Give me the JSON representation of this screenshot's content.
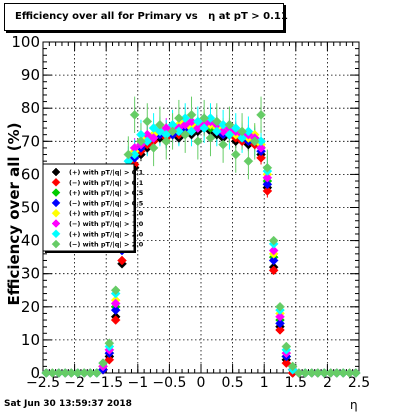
{
  "title": "Efficiency over all for Primary vs   η at pT > 0.11",
  "date": "Sat Jun 30 13:59:37 2018",
  "chart_data": {
    "type": "scatter",
    "title": "Efficiency over all for Primary vs   η at pT > 0.11",
    "xlabel": "η",
    "ylabel": "Efficiency over all (%)",
    "xlim": [
      -2.5,
      2.5
    ],
    "ylim": [
      0,
      100
    ],
    "grid": true,
    "legend_position": "left-middle",
    "x_ticks": [
      "−2.5",
      "−2",
      "−1.5",
      "−1",
      "−0.5",
      "0",
      "0.5",
      "1",
      "1.5",
      "2",
      "2.5"
    ],
    "y_ticks": [
      "0",
      "10",
      "20",
      "30",
      "40",
      "50",
      "60",
      "70",
      "80",
      "90",
      "100"
    ],
    "x": [
      -2.45,
      -2.35,
      -2.25,
      -2.15,
      -2.05,
      -1.95,
      -1.85,
      -1.75,
      -1.65,
      -1.55,
      -1.45,
      -1.35,
      -1.25,
      -1.15,
      -1.05,
      -0.95,
      -0.85,
      -0.75,
      -0.65,
      -0.55,
      -0.45,
      -0.35,
      -0.25,
      -0.15,
      -0.05,
      0.05,
      0.15,
      0.25,
      0.35,
      0.45,
      0.55,
      0.65,
      0.75,
      0.85,
      0.95,
      1.05,
      1.15,
      1.25,
      1.35,
      1.45,
      1.55,
      1.65,
      1.75,
      1.85,
      1.95,
      2.05,
      2.15,
      2.25,
      2.35,
      2.45
    ],
    "series": [
      {
        "name": "(+) with pT/|q| > 0.1",
        "color": "#000000",
        "values": [
          0,
          0,
          0,
          0,
          0,
          0,
          0,
          0,
          0,
          1,
          5,
          17,
          33,
          55,
          62,
          66,
          68,
          70,
          71,
          70,
          72,
          71,
          73,
          72,
          73,
          74,
          73,
          72,
          71,
          72,
          70,
          71,
          69,
          70,
          66,
          56,
          32,
          14,
          4,
          0,
          0,
          0,
          0,
          0,
          0,
          0,
          0,
          0,
          0,
          0
        ]
      },
      {
        "name": "(−) with pT/|q| > 0.1",
        "color": "#ff0000",
        "values": [
          0,
          0,
          0,
          0,
          0,
          0,
          0,
          0,
          0,
          1,
          4,
          16,
          34,
          56,
          63,
          67,
          69,
          70,
          72,
          71,
          73,
          72,
          74,
          73,
          74,
          75,
          74,
          73,
          72,
          73,
          71,
          70,
          70,
          69,
          65,
          55,
          31,
          13,
          3,
          0,
          0,
          0,
          0,
          0,
          0,
          0,
          0,
          0,
          0,
          0
        ]
      },
      {
        "name": "(+) with pT/|q| > 0.5",
        "color": "#00cc00",
        "values": [
          0,
          0,
          0,
          0,
          0,
          0,
          0,
          0,
          0,
          2,
          6,
          20,
          38,
          60,
          66,
          69,
          70,
          72,
          73,
          72,
          73,
          74,
          75,
          74,
          75,
          75,
          74,
          74,
          73,
          73,
          72,
          72,
          71,
          71,
          68,
          58,
          35,
          16,
          5,
          1,
          0,
          0,
          0,
          0,
          0,
          0,
          0,
          0,
          0,
          0
        ]
      },
      {
        "name": "(−) with pT/|q| > 0.5",
        "color": "#0000ff",
        "values": [
          0,
          0,
          0,
          0,
          0,
          0,
          0,
          0,
          0,
          1,
          6,
          19,
          37,
          59,
          65,
          68,
          70,
          71,
          72,
          73,
          72,
          73,
          74,
          75,
          74,
          76,
          75,
          73,
          72,
          72,
          73,
          71,
          70,
          70,
          67,
          57,
          34,
          15,
          5,
          1,
          0,
          0,
          0,
          0,
          0,
          0,
          0,
          0,
          0,
          0
        ]
      },
      {
        "name": "(+) with pT/|q| > 1.0",
        "color": "#ffff00",
        "values": [
          0,
          0,
          0,
          0,
          0,
          0,
          0,
          0,
          0,
          2,
          7,
          22,
          40,
          62,
          67,
          70,
          71,
          72,
          74,
          73,
          74,
          75,
          76,
          74,
          75,
          76,
          75,
          74,
          74,
          73,
          72,
          73,
          71,
          72,
          69,
          60,
          36,
          18,
          6,
          1,
          0,
          0,
          0,
          0,
          0,
          0,
          0,
          0,
          0,
          0
        ]
      },
      {
        "name": "(−) with pT/|q| > 1.0",
        "color": "#ff00ff",
        "values": [
          0,
          0,
          0,
          0,
          0,
          0,
          0,
          0,
          0,
          2,
          7,
          21,
          39,
          61,
          68,
          69,
          72,
          71,
          73,
          74,
          73,
          74,
          75,
          76,
          74,
          75,
          76,
          75,
          73,
          74,
          73,
          72,
          72,
          71,
          68,
          59,
          37,
          17,
          6,
          1,
          0,
          0,
          0,
          0,
          0,
          0,
          0,
          0,
          0,
          0
        ]
      },
      {
        "name": "(+) with pT/|q| > 2.0",
        "color": "#00ffff",
        "values": [
          0,
          0,
          0,
          0,
          0,
          0,
          0,
          0,
          0,
          3,
          8,
          24,
          43,
          64,
          66,
          72,
          70,
          74,
          73,
          72,
          75,
          73,
          77,
          73,
          76,
          74,
          77,
          73,
          75,
          72,
          74,
          71,
          73,
          70,
          70,
          61,
          39,
          19,
          7,
          1,
          0,
          0,
          0,
          0,
          0,
          0,
          0,
          0,
          0,
          0
        ]
      },
      {
        "name": "(−) with pT/|q| > 2.0",
        "color": "#66cc66",
        "values": [
          0,
          0,
          0,
          0,
          0,
          0,
          0,
          0,
          0,
          3,
          9,
          25,
          45,
          66,
          78,
          70,
          76,
          68,
          75,
          70,
          73,
          77,
          72,
          78,
          70,
          77,
          71,
          76,
          69,
          75,
          66,
          73,
          64,
          70,
          78,
          62,
          40,
          20,
          8,
          2,
          0,
          0,
          0,
          0,
          0,
          0,
          0,
          0,
          0,
          0
        ]
      }
    ]
  }
}
